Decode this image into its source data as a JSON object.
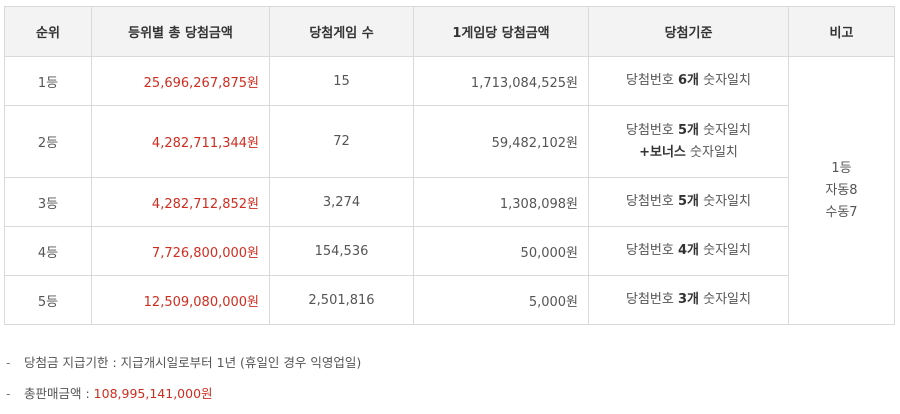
{
  "table": {
    "headers": [
      "순위",
      "등위별 총 당첨금액",
      "당첨게임 수",
      "1게임당 당첨금액",
      "당첨기준",
      "비고"
    ],
    "rows": [
      {
        "rank": "1등",
        "total": "25,696,267,875원",
        "games": "15",
        "per_game": "1,713,084,525원",
        "criteria_line1_prefix": "당첨번호 ",
        "criteria_line1_bold": "6개",
        "criteria_line1_suffix": " 숫자일치"
      },
      {
        "rank": "2등",
        "total": "4,282,711,344원",
        "games": "72",
        "per_game": "59,482,102원",
        "criteria_line1_prefix": "당첨번호 ",
        "criteria_line1_bold": "5개",
        "criteria_line1_suffix": " 숫자일치",
        "criteria_line2_bold": "+보너스",
        "criteria_line2_suffix": " 숫자일치"
      },
      {
        "rank": "3등",
        "total": "4,282,712,852원",
        "games": "3,274",
        "per_game": "1,308,098원",
        "criteria_line1_prefix": "당첨번호 ",
        "criteria_line1_bold": "5개",
        "criteria_line1_suffix": " 숫자일치"
      },
      {
        "rank": "4등",
        "total": "7,726,800,000원",
        "games": "154,536",
        "per_game": "50,000원",
        "criteria_line1_prefix": "당첨번호 ",
        "criteria_line1_bold": "4개",
        "criteria_line1_suffix": " 숫자일치"
      },
      {
        "rank": "5등",
        "total": "12,509,080,000원",
        "games": "2,501,816",
        "per_game": "5,000원",
        "criteria_line1_prefix": "당첨번호 ",
        "criteria_line1_bold": "3개",
        "criteria_line1_suffix": " 숫자일치"
      }
    ],
    "note": {
      "line1": "1등",
      "line2": "자동8",
      "line3": "수동7"
    }
  },
  "notes": {
    "dash": "-",
    "deadline_label": "당첨금 지급기한 : ",
    "deadline_value": "지급개시일로부터 1년 (휴일인 경우 익영업일)",
    "sales_label": "총판매금액 : ",
    "sales_value": "108,995,141,000원"
  },
  "colors": {
    "accent_red": "#cf2d20",
    "header_bg": "#f3f3f3",
    "border": "#d9d9d9"
  }
}
